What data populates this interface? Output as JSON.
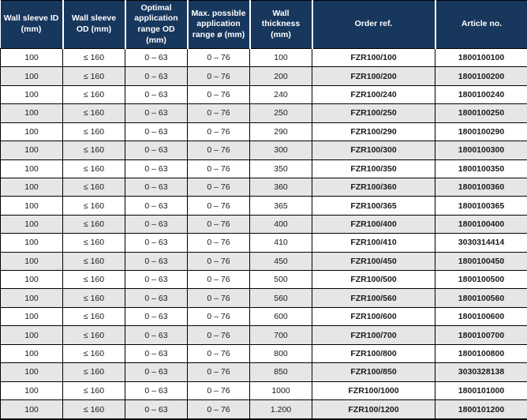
{
  "colors": {
    "header_bg": "#17375d",
    "header_text": "#ffffff",
    "row_stripe": "#e6e6e6",
    "row_white": "#ffffff",
    "grid_border": "#000000",
    "body_text": "#1a1a1a"
  },
  "chart_data": {
    "type": "table",
    "columns": [
      "Wall sleeve ID (mm)",
      "Wall sleeve OD (mm)",
      "Optimal application range OD (mm)",
      "Max. possible application range ø (mm)",
      "Wall thickness (mm)",
      "Order ref.",
      "Article no."
    ],
    "rows": [
      [
        "100",
        "≤ 160",
        "0 – 63",
        "0 – 76",
        "100",
        "FZR100/100",
        "1800100100"
      ],
      [
        "100",
        "≤ 160",
        "0 – 63",
        "0 – 76",
        "200",
        "FZR100/200",
        "1800100200"
      ],
      [
        "100",
        "≤ 160",
        "0 – 63",
        "0 – 76",
        "240",
        "FZR100/240",
        "1800100240"
      ],
      [
        "100",
        "≤ 160",
        "0 – 63",
        "0 – 76",
        "250",
        "FZR100/250",
        "1800100250"
      ],
      [
        "100",
        "≤ 160",
        "0 – 63",
        "0 – 76",
        "290",
        "FZR100/290",
        "1800100290"
      ],
      [
        "100",
        "≤ 160",
        "0 – 63",
        "0 – 76",
        "300",
        "FZR100/300",
        "1800100300"
      ],
      [
        "100",
        "≤ 160",
        "0 – 63",
        "0 – 76",
        "350",
        "FZR100/350",
        "1800100350"
      ],
      [
        "100",
        "≤ 160",
        "0 – 63",
        "0 – 76",
        "360",
        "FZR100/360",
        "1800100360"
      ],
      [
        "100",
        "≤ 160",
        "0 – 63",
        "0 – 76",
        "365",
        "FZR100/365",
        "1800100365"
      ],
      [
        "100",
        "≤ 160",
        "0 – 63",
        "0 – 76",
        "400",
        "FZR100/400",
        "1800100400"
      ],
      [
        "100",
        "≤ 160",
        "0 – 63",
        "0 – 76",
        "410",
        "FZR100/410",
        "3030314414"
      ],
      [
        "100",
        "≤ 160",
        "0 – 63",
        "0 – 76",
        "450",
        "FZR100/450",
        "1800100450"
      ],
      [
        "100",
        "≤ 160",
        "0 – 63",
        "0 – 76",
        "500",
        "FZR100/500",
        "1800100500"
      ],
      [
        "100",
        "≤ 160",
        "0 – 63",
        "0 – 76",
        "560",
        "FZR100/560",
        "1800100560"
      ],
      [
        "100",
        "≤ 160",
        "0 – 63",
        "0 – 76",
        "600",
        "FZR100/600",
        "1800100600"
      ],
      [
        "100",
        "≤ 160",
        "0 – 63",
        "0 – 76",
        "700",
        "FZR100/700",
        "1800100700"
      ],
      [
        "100",
        "≤ 160",
        "0 – 63",
        "0 – 76",
        "800",
        "FZR100/800",
        "1800100800"
      ],
      [
        "100",
        "≤ 160",
        "0 – 63",
        "0 – 76",
        "850",
        "FZR100/850",
        "3030328138"
      ],
      [
        "100",
        "≤ 160",
        "0 – 63",
        "0 – 76",
        "1000",
        "FZR100/1000",
        "1800101000"
      ],
      [
        "100",
        "≤ 160",
        "0 – 63",
        "0 – 76",
        "1.200",
        "FZR100/1200",
        "1800101200"
      ]
    ]
  }
}
